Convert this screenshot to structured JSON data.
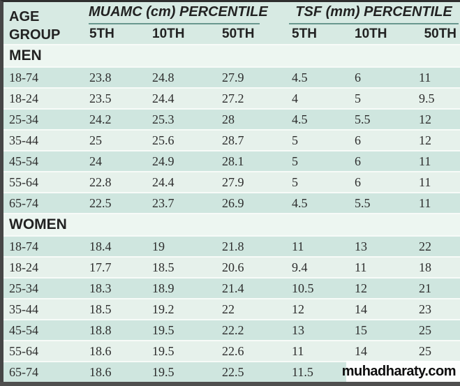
{
  "table": {
    "header": {
      "age_label_line1": "AGE",
      "age_label_line2": "GROUP",
      "groups": [
        {
          "label": "MUAMC (cm) PERCENTILE"
        },
        {
          "label": "TSF (mm) PERCENTILE"
        }
      ],
      "percentile_headers": [
        "5TH",
        "10TH",
        "50TH",
        "5TH",
        "10TH",
        "50TH"
      ]
    },
    "sections": [
      {
        "label": "MEN",
        "rows": [
          {
            "age": "18-74",
            "values": [
              "23.8",
              "24.8",
              "27.9",
              "4.5",
              "6",
              "11"
            ]
          },
          {
            "age": "18-24",
            "values": [
              "23.5",
              "24.4",
              "27.2",
              "4",
              "5",
              "9.5"
            ]
          },
          {
            "age": "25-34",
            "values": [
              "24.2",
              "25.3",
              "28",
              "4.5",
              "5.5",
              "12"
            ]
          },
          {
            "age": "35-44",
            "values": [
              "25",
              "25.6",
              "28.7",
              "5",
              "6",
              "12"
            ]
          },
          {
            "age": "45-54",
            "values": [
              "24",
              "24.9",
              "28.1",
              "5",
              "6",
              "11"
            ]
          },
          {
            "age": "55-64",
            "values": [
              "22.8",
              "24.4",
              "27.9",
              "5",
              "6",
              "11"
            ]
          },
          {
            "age": "65-74",
            "values": [
              "22.5",
              "23.7",
              "26.9",
              "4.5",
              "5.5",
              "11"
            ]
          }
        ]
      },
      {
        "label": "WOMEN",
        "rows": [
          {
            "age": "18-74",
            "values": [
              "18.4",
              "19",
              "21.8",
              "11",
              "13",
              "22"
            ]
          },
          {
            "age": "18-24",
            "values": [
              "17.7",
              "18.5",
              "20.6",
              "9.4",
              "11",
              "18"
            ]
          },
          {
            "age": "25-34",
            "values": [
              "18.3",
              "18.9",
              "21.4",
              "10.5",
              "12",
              "21"
            ]
          },
          {
            "age": "35-44",
            "values": [
              "18.5",
              "19.2",
              "22",
              "12",
              "14",
              "23"
            ]
          },
          {
            "age": "45-54",
            "values": [
              "18.8",
              "19.5",
              "22.2",
              "13",
              "15",
              "25"
            ]
          },
          {
            "age": "55-64",
            "values": [
              "18.6",
              "19.5",
              "22.6",
              "11",
              "14",
              "25"
            ]
          },
          {
            "age": "65-74",
            "values": [
              "18.6",
              "19.5",
              "22.5",
              "11.5",
              "",
              ""
            ]
          }
        ]
      }
    ]
  },
  "watermark": {
    "text": "muhadharaty.com"
  },
  "colors": {
    "header_bg": "#d7eae3",
    "row_dark": "#cfe6df",
    "row_light": "#e6f1eb",
    "section_bg": "#edf6f1",
    "rule_teal": "#69978e",
    "border_dark": "#464646",
    "text": "#2d2d2d"
  }
}
